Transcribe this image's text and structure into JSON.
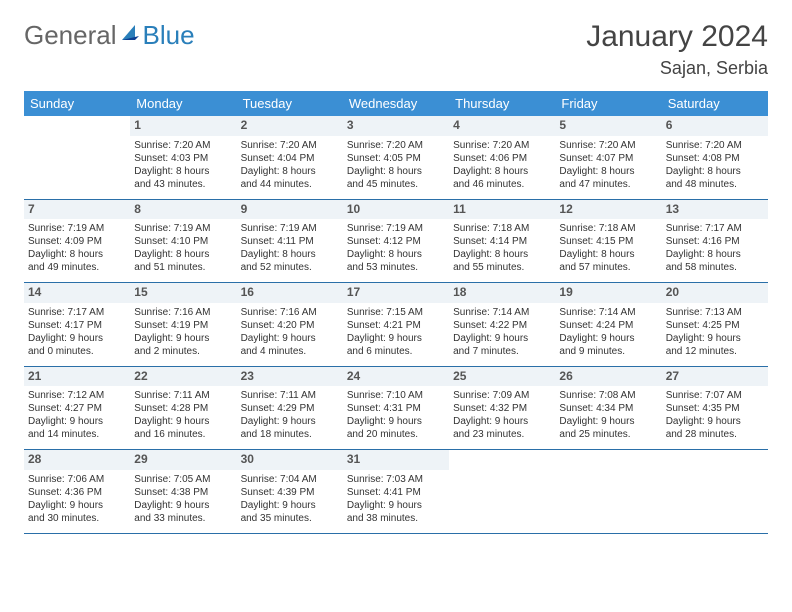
{
  "logo": {
    "text1": "General",
    "text2": "Blue"
  },
  "title": "January 2024",
  "location": "Sajan, Serbia",
  "colors": {
    "header_bg": "#3b8fd4",
    "header_text": "#ffffff",
    "daynum_bg": "#eef3f7",
    "row_border": "#2a6fa8",
    "logo_accent": "#2a7fba"
  },
  "weekdays": [
    "Sunday",
    "Monday",
    "Tuesday",
    "Wednesday",
    "Thursday",
    "Friday",
    "Saturday"
  ],
  "weeks": [
    [
      null,
      {
        "n": "1",
        "sr": "Sunrise: 7:20 AM",
        "ss": "Sunset: 4:03 PM",
        "d1": "Daylight: 8 hours",
        "d2": "and 43 minutes."
      },
      {
        "n": "2",
        "sr": "Sunrise: 7:20 AM",
        "ss": "Sunset: 4:04 PM",
        "d1": "Daylight: 8 hours",
        "d2": "and 44 minutes."
      },
      {
        "n": "3",
        "sr": "Sunrise: 7:20 AM",
        "ss": "Sunset: 4:05 PM",
        "d1": "Daylight: 8 hours",
        "d2": "and 45 minutes."
      },
      {
        "n": "4",
        "sr": "Sunrise: 7:20 AM",
        "ss": "Sunset: 4:06 PM",
        "d1": "Daylight: 8 hours",
        "d2": "and 46 minutes."
      },
      {
        "n": "5",
        "sr": "Sunrise: 7:20 AM",
        "ss": "Sunset: 4:07 PM",
        "d1": "Daylight: 8 hours",
        "d2": "and 47 minutes."
      },
      {
        "n": "6",
        "sr": "Sunrise: 7:20 AM",
        "ss": "Sunset: 4:08 PM",
        "d1": "Daylight: 8 hours",
        "d2": "and 48 minutes."
      }
    ],
    [
      {
        "n": "7",
        "sr": "Sunrise: 7:19 AM",
        "ss": "Sunset: 4:09 PM",
        "d1": "Daylight: 8 hours",
        "d2": "and 49 minutes."
      },
      {
        "n": "8",
        "sr": "Sunrise: 7:19 AM",
        "ss": "Sunset: 4:10 PM",
        "d1": "Daylight: 8 hours",
        "d2": "and 51 minutes."
      },
      {
        "n": "9",
        "sr": "Sunrise: 7:19 AM",
        "ss": "Sunset: 4:11 PM",
        "d1": "Daylight: 8 hours",
        "d2": "and 52 minutes."
      },
      {
        "n": "10",
        "sr": "Sunrise: 7:19 AM",
        "ss": "Sunset: 4:12 PM",
        "d1": "Daylight: 8 hours",
        "d2": "and 53 minutes."
      },
      {
        "n": "11",
        "sr": "Sunrise: 7:18 AM",
        "ss": "Sunset: 4:14 PM",
        "d1": "Daylight: 8 hours",
        "d2": "and 55 minutes."
      },
      {
        "n": "12",
        "sr": "Sunrise: 7:18 AM",
        "ss": "Sunset: 4:15 PM",
        "d1": "Daylight: 8 hours",
        "d2": "and 57 minutes."
      },
      {
        "n": "13",
        "sr": "Sunrise: 7:17 AM",
        "ss": "Sunset: 4:16 PM",
        "d1": "Daylight: 8 hours",
        "d2": "and 58 minutes."
      }
    ],
    [
      {
        "n": "14",
        "sr": "Sunrise: 7:17 AM",
        "ss": "Sunset: 4:17 PM",
        "d1": "Daylight: 9 hours",
        "d2": "and 0 minutes."
      },
      {
        "n": "15",
        "sr": "Sunrise: 7:16 AM",
        "ss": "Sunset: 4:19 PM",
        "d1": "Daylight: 9 hours",
        "d2": "and 2 minutes."
      },
      {
        "n": "16",
        "sr": "Sunrise: 7:16 AM",
        "ss": "Sunset: 4:20 PM",
        "d1": "Daylight: 9 hours",
        "d2": "and 4 minutes."
      },
      {
        "n": "17",
        "sr": "Sunrise: 7:15 AM",
        "ss": "Sunset: 4:21 PM",
        "d1": "Daylight: 9 hours",
        "d2": "and 6 minutes."
      },
      {
        "n": "18",
        "sr": "Sunrise: 7:14 AM",
        "ss": "Sunset: 4:22 PM",
        "d1": "Daylight: 9 hours",
        "d2": "and 7 minutes."
      },
      {
        "n": "19",
        "sr": "Sunrise: 7:14 AM",
        "ss": "Sunset: 4:24 PM",
        "d1": "Daylight: 9 hours",
        "d2": "and 9 minutes."
      },
      {
        "n": "20",
        "sr": "Sunrise: 7:13 AM",
        "ss": "Sunset: 4:25 PM",
        "d1": "Daylight: 9 hours",
        "d2": "and 12 minutes."
      }
    ],
    [
      {
        "n": "21",
        "sr": "Sunrise: 7:12 AM",
        "ss": "Sunset: 4:27 PM",
        "d1": "Daylight: 9 hours",
        "d2": "and 14 minutes."
      },
      {
        "n": "22",
        "sr": "Sunrise: 7:11 AM",
        "ss": "Sunset: 4:28 PM",
        "d1": "Daylight: 9 hours",
        "d2": "and 16 minutes."
      },
      {
        "n": "23",
        "sr": "Sunrise: 7:11 AM",
        "ss": "Sunset: 4:29 PM",
        "d1": "Daylight: 9 hours",
        "d2": "and 18 minutes."
      },
      {
        "n": "24",
        "sr": "Sunrise: 7:10 AM",
        "ss": "Sunset: 4:31 PM",
        "d1": "Daylight: 9 hours",
        "d2": "and 20 minutes."
      },
      {
        "n": "25",
        "sr": "Sunrise: 7:09 AM",
        "ss": "Sunset: 4:32 PM",
        "d1": "Daylight: 9 hours",
        "d2": "and 23 minutes."
      },
      {
        "n": "26",
        "sr": "Sunrise: 7:08 AM",
        "ss": "Sunset: 4:34 PM",
        "d1": "Daylight: 9 hours",
        "d2": "and 25 minutes."
      },
      {
        "n": "27",
        "sr": "Sunrise: 7:07 AM",
        "ss": "Sunset: 4:35 PM",
        "d1": "Daylight: 9 hours",
        "d2": "and 28 minutes."
      }
    ],
    [
      {
        "n": "28",
        "sr": "Sunrise: 7:06 AM",
        "ss": "Sunset: 4:36 PM",
        "d1": "Daylight: 9 hours",
        "d2": "and 30 minutes."
      },
      {
        "n": "29",
        "sr": "Sunrise: 7:05 AM",
        "ss": "Sunset: 4:38 PM",
        "d1": "Daylight: 9 hours",
        "d2": "and 33 minutes."
      },
      {
        "n": "30",
        "sr": "Sunrise: 7:04 AM",
        "ss": "Sunset: 4:39 PM",
        "d1": "Daylight: 9 hours",
        "d2": "and 35 minutes."
      },
      {
        "n": "31",
        "sr": "Sunrise: 7:03 AM",
        "ss": "Sunset: 4:41 PM",
        "d1": "Daylight: 9 hours",
        "d2": "and 38 minutes."
      },
      null,
      null,
      null
    ]
  ]
}
